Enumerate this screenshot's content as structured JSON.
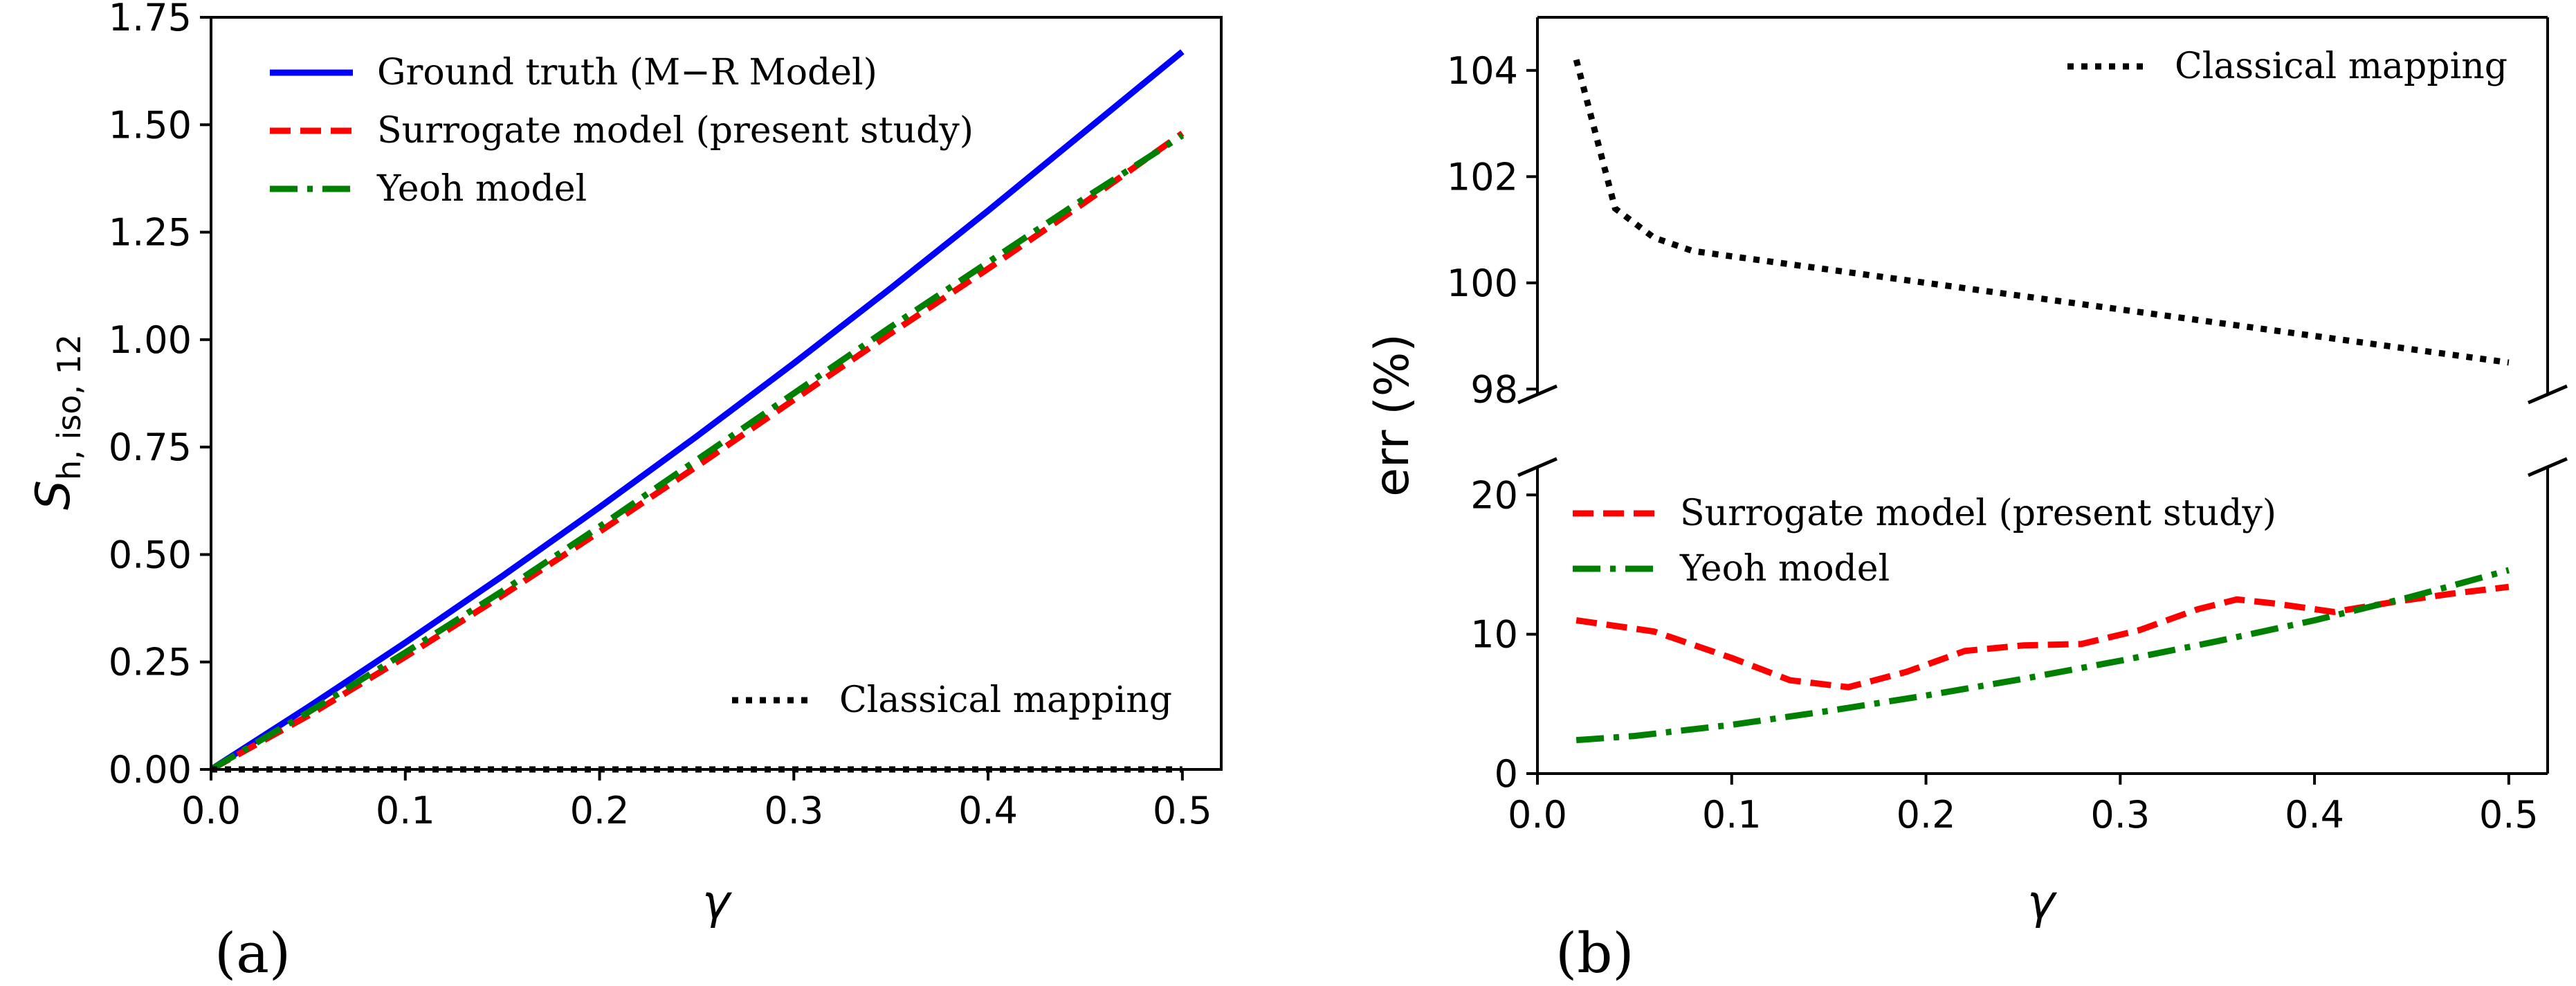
{
  "chart_data": [
    {
      "type": "line",
      "panel": "(a)",
      "xlabel": "γ",
      "ylabel": "S",
      "ylabel_sub": "h, iso, 12",
      "xlim": [
        0.0,
        0.52
      ],
      "ylim": [
        0.0,
        1.75
      ],
      "xticks": [
        "0.0",
        "0.1",
        "0.2",
        "0.3",
        "0.4",
        "0.5"
      ],
      "yticks": [
        "0.00",
        "0.25",
        "0.50",
        "0.75",
        "1.00",
        "1.25",
        "1.50",
        "1.75"
      ],
      "legend_upper": "top-left",
      "legend_lower": "bottom-right",
      "series": [
        {
          "name": "Ground truth (M−R Model)",
          "color": "#0000ff",
          "style": "solid",
          "x": [
            0.0,
            0.05,
            0.1,
            0.15,
            0.2,
            0.25,
            0.3,
            0.35,
            0.4,
            0.45,
            0.5
          ],
          "y": [
            0.0,
            0.145,
            0.295,
            0.45,
            0.61,
            0.775,
            0.945,
            1.12,
            1.3,
            1.485,
            1.67
          ]
        },
        {
          "name": "Surrogate model (present study)",
          "color": "#ff0000",
          "style": "dashed",
          "x": [
            0.0,
            0.05,
            0.1,
            0.15,
            0.2,
            0.25,
            0.3,
            0.35,
            0.4,
            0.45,
            0.5
          ],
          "y": [
            0.0,
            0.125,
            0.262,
            0.405,
            0.553,
            0.705,
            0.86,
            1.015,
            1.165,
            1.32,
            1.48
          ]
        },
        {
          "name": "Yeoh model",
          "color": "#008000",
          "style": "dashdot",
          "x": [
            0.0,
            0.05,
            0.1,
            0.15,
            0.2,
            0.25,
            0.3,
            0.35,
            0.4,
            0.45,
            0.5
          ],
          "y": [
            0.0,
            0.133,
            0.272,
            0.415,
            0.565,
            0.72,
            0.875,
            1.03,
            1.18,
            1.33,
            1.475
          ]
        },
        {
          "name": "Classical mapping",
          "color": "#000000",
          "style": "dotted",
          "x": [
            0.0,
            0.5
          ],
          "y": [
            0.0,
            0.0
          ]
        }
      ]
    },
    {
      "type": "line",
      "panel": "(b)",
      "xlabel": "γ",
      "ylabel": "err (%)",
      "xlim": [
        0.0,
        0.52
      ],
      "xticks": [
        "0.0",
        "0.1",
        "0.2",
        "0.3",
        "0.4",
        "0.5"
      ],
      "broken_axis": true,
      "upper_ylim": [
        97.9,
        105.0
      ],
      "upper_yticks": [
        "98",
        "100",
        "102",
        "104"
      ],
      "lower_ylim": [
        0.0,
        22.0
      ],
      "lower_yticks": [
        "0",
        "10",
        "20"
      ],
      "legend_upper": "top-right",
      "legend_lower": "top-left",
      "series": [
        {
          "name": "Classical mapping",
          "color": "#000000",
          "style": "dotted",
          "axis": "upper",
          "x": [
            0.02,
            0.03,
            0.04,
            0.06,
            0.08,
            0.1,
            0.15,
            0.2,
            0.25,
            0.3,
            0.35,
            0.4,
            0.45,
            0.5
          ],
          "y": [
            104.2,
            102.8,
            101.4,
            100.85,
            100.6,
            100.5,
            100.25,
            100.0,
            99.75,
            99.5,
            99.25,
            99.0,
            98.75,
            98.5
          ]
        },
        {
          "name": "Surrogate model (present study)",
          "color": "#ff0000",
          "style": "dashed",
          "axis": "lower",
          "x": [
            0.02,
            0.06,
            0.1,
            0.13,
            0.16,
            0.19,
            0.22,
            0.25,
            0.28,
            0.31,
            0.34,
            0.36,
            0.38,
            0.41,
            0.44,
            0.47,
            0.5
          ],
          "y": [
            11.0,
            10.2,
            8.3,
            6.7,
            6.2,
            7.3,
            8.8,
            9.2,
            9.3,
            10.3,
            11.8,
            12.5,
            12.2,
            11.6,
            12.3,
            12.9,
            13.4
          ]
        },
        {
          "name": "Yeoh model",
          "color": "#008000",
          "style": "dashdot",
          "axis": "lower",
          "x": [
            0.02,
            0.05,
            0.1,
            0.15,
            0.2,
            0.25,
            0.3,
            0.35,
            0.4,
            0.45,
            0.5
          ],
          "y": [
            2.4,
            2.7,
            3.5,
            4.5,
            5.6,
            6.8,
            8.1,
            9.5,
            11.0,
            12.7,
            14.6
          ]
        }
      ]
    }
  ]
}
